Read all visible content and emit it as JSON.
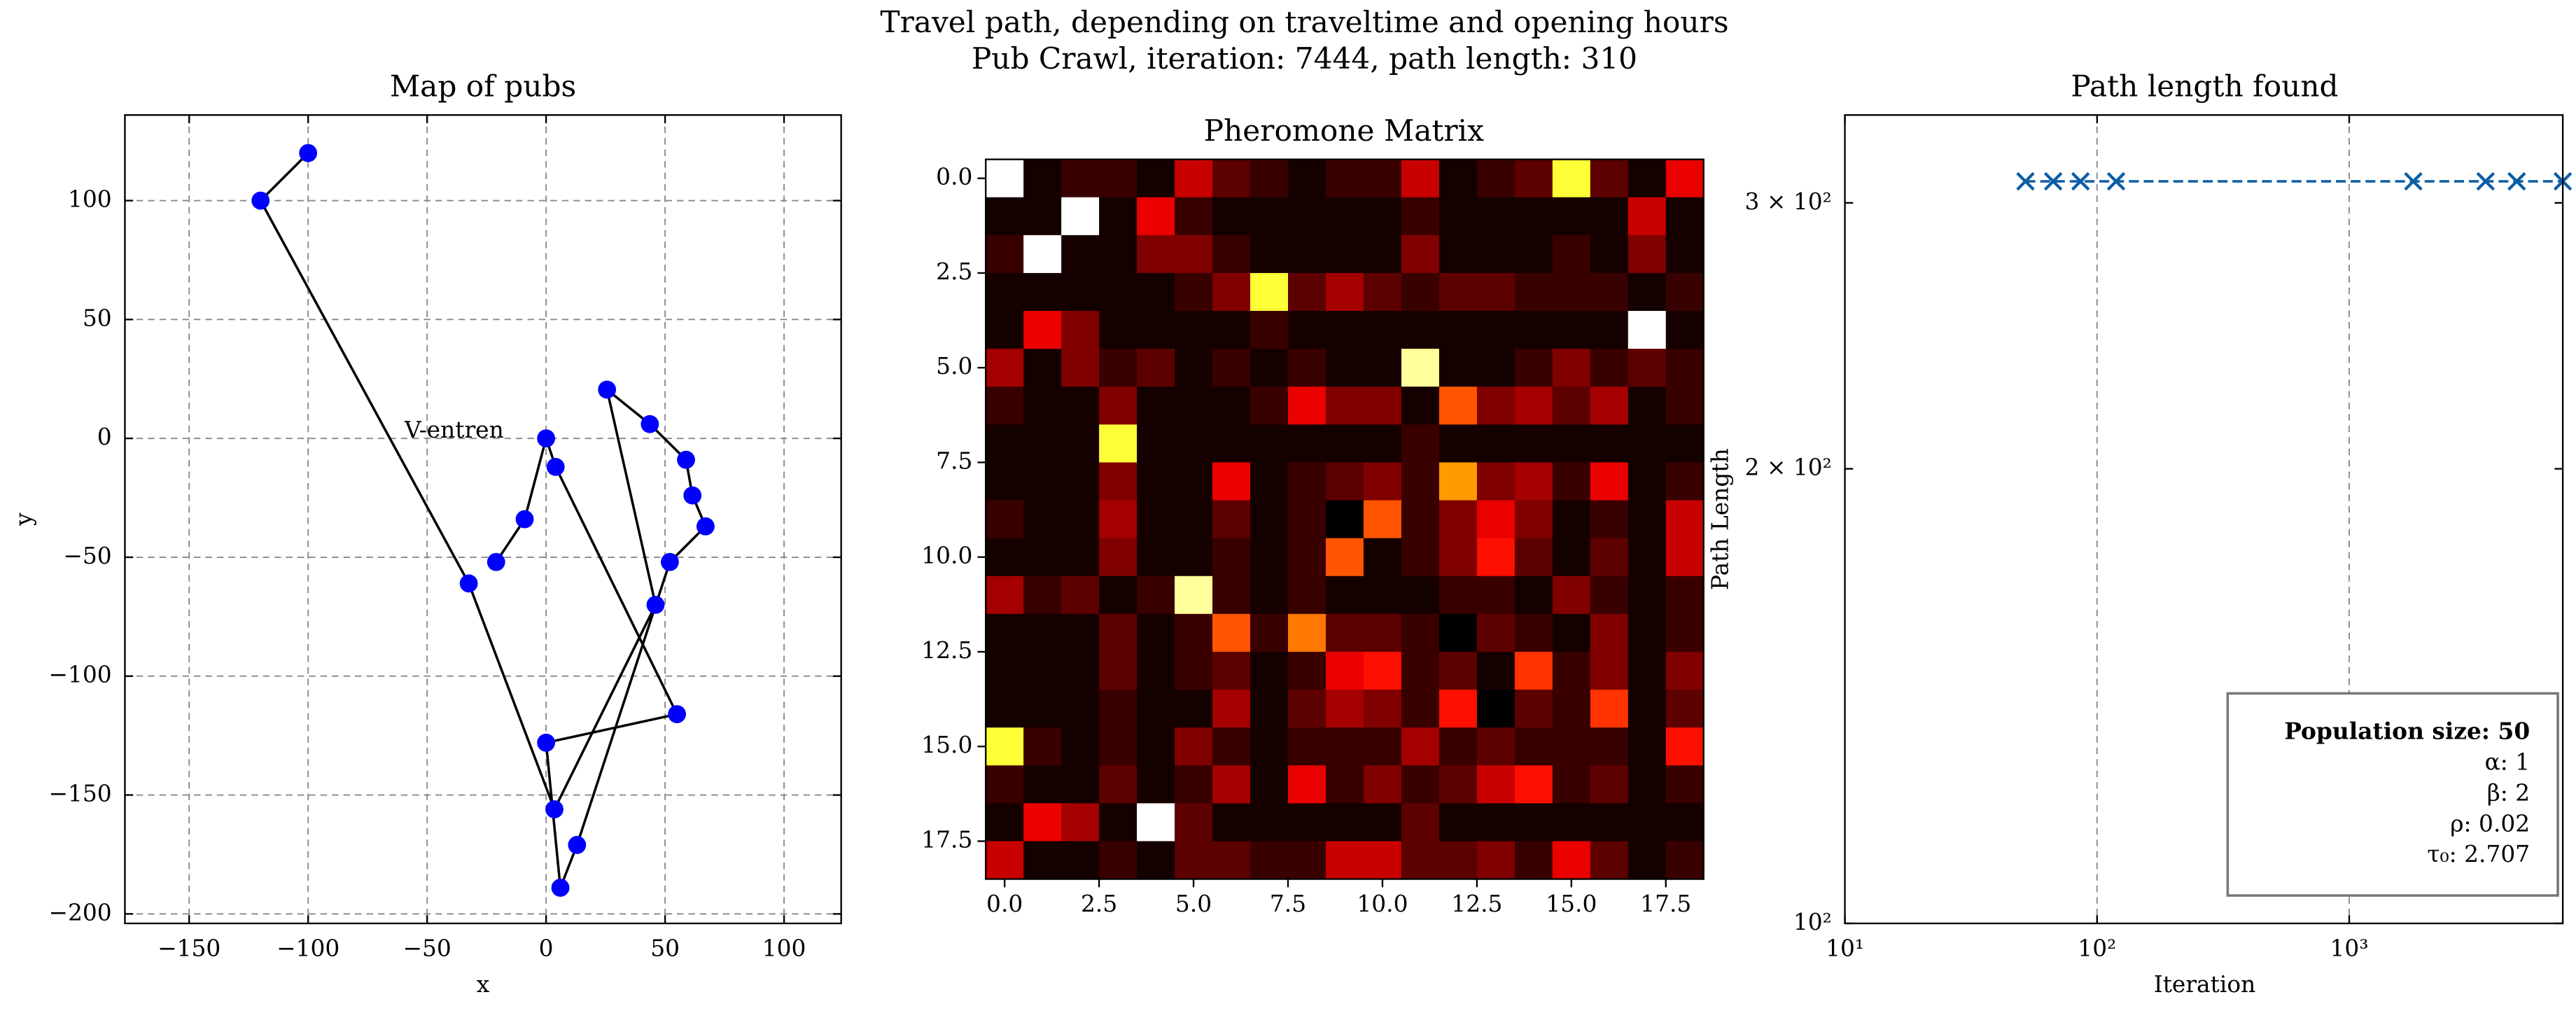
{
  "figure": {
    "title": "Travel path, depending on traveltime and opening hours",
    "subtitle": "Pub Crawl, iteration: 7444, path length: 310"
  },
  "chart_data": [
    {
      "type": "route",
      "title": "Map of pubs",
      "x_label": "x",
      "y_label": "y",
      "x": [
        -100,
        -120,
        -32.5,
        3.5,
        46,
        25.6,
        43.6,
        58.8,
        61.5,
        67,
        52,
        13,
        6,
        0,
        55,
        4,
        0,
        -9,
        -21
      ],
      "values": [
        120,
        100,
        -61,
        -156,
        -70,
        20.5,
        6,
        -9,
        -24,
        -37,
        -52,
        -171,
        -189,
        -128,
        -116,
        -12,
        0,
        -34,
        -52
      ],
      "color": "#0000ff",
      "line_color": "#000000",
      "annotations": [
        {
          "text": "V-entren",
          "x": -59.5,
          "y": 3
        }
      ],
      "xlim": [
        -177,
        124
      ],
      "ylim": [
        -204,
        136
      ],
      "xticks": [
        {
          "value": -150,
          "label": "−150"
        },
        {
          "value": -100,
          "label": "−100"
        },
        {
          "value": -50,
          "label": "−50"
        },
        0,
        50,
        100
      ],
      "yticks": [
        {
          "value": -200,
          "label": "−200"
        },
        {
          "value": -150,
          "label": "−150"
        },
        {
          "value": -100,
          "label": "−100"
        },
        {
          "value": -50,
          "label": "−50"
        },
        0,
        50,
        100
      ],
      "grid": "both"
    },
    {
      "type": "heatmap",
      "title": "Pheromone Matrix",
      "colormap": "hot",
      "z": [
        [
          1.0,
          0.05,
          0.1,
          0.1,
          0.05,
          0.3,
          0.15,
          0.1,
          0.05,
          0.1,
          0.1,
          0.3,
          0.05,
          0.1,
          0.15,
          0.8,
          0.15,
          0.05,
          0.35
        ],
        [
          0.05,
          0.05,
          1.0,
          0.05,
          0.35,
          0.1,
          0.05,
          0.05,
          0.05,
          0.05,
          0.05,
          0.1,
          0.05,
          0.05,
          0.05,
          0.05,
          0.05,
          0.3,
          0.05
        ],
        [
          0.1,
          1.0,
          0.05,
          0.05,
          0.2,
          0.2,
          0.1,
          0.05,
          0.05,
          0.05,
          0.05,
          0.2,
          0.05,
          0.05,
          0.05,
          0.1,
          0.05,
          0.2,
          0.05
        ],
        [
          0.05,
          0.05,
          0.05,
          0.05,
          0.05,
          0.1,
          0.2,
          0.8,
          0.15,
          0.25,
          0.15,
          0.1,
          0.15,
          0.15,
          0.1,
          0.1,
          0.1,
          0.05,
          0.1
        ],
        [
          0.05,
          0.35,
          0.2,
          0.05,
          0.05,
          0.05,
          0.05,
          0.1,
          0.05,
          0.05,
          0.05,
          0.05,
          0.05,
          0.05,
          0.05,
          0.05,
          0.05,
          1.0,
          0.05
        ],
        [
          0.25,
          0.05,
          0.2,
          0.1,
          0.15,
          0.05,
          0.1,
          0.05,
          0.1,
          0.05,
          0.05,
          0.9,
          0.05,
          0.05,
          0.1,
          0.2,
          0.1,
          0.15,
          0.1
        ],
        [
          0.1,
          0.05,
          0.05,
          0.2,
          0.05,
          0.05,
          0.05,
          0.1,
          0.35,
          0.2,
          0.2,
          0.05,
          0.5,
          0.2,
          0.25,
          0.15,
          0.25,
          0.05,
          0.1
        ],
        [
          0.05,
          0.05,
          0.05,
          0.8,
          0.05,
          0.05,
          0.05,
          0.05,
          0.05,
          0.05,
          0.05,
          0.1,
          0.05,
          0.05,
          0.05,
          0.05,
          0.05,
          0.05,
          0.05
        ],
        [
          0.05,
          0.05,
          0.05,
          0.2,
          0.05,
          0.05,
          0.35,
          0.05,
          0.1,
          0.15,
          0.2,
          0.1,
          0.6,
          0.2,
          0.25,
          0.1,
          0.35,
          0.05,
          0.1
        ],
        [
          0.1,
          0.05,
          0.05,
          0.25,
          0.05,
          0.05,
          0.15,
          0.05,
          0.1,
          0.02,
          0.5,
          0.1,
          0.2,
          0.35,
          0.2,
          0.05,
          0.1,
          0.05,
          0.3
        ],
        [
          0.05,
          0.05,
          0.05,
          0.2,
          0.05,
          0.05,
          0.1,
          0.05,
          0.1,
          0.5,
          0.05,
          0.1,
          0.2,
          0.4,
          0.15,
          0.05,
          0.15,
          0.05,
          0.3
        ],
        [
          0.25,
          0.1,
          0.15,
          0.05,
          0.1,
          0.9,
          0.1,
          0.05,
          0.1,
          0.05,
          0.05,
          0.05,
          0.1,
          0.1,
          0.05,
          0.2,
          0.1,
          0.05,
          0.1
        ],
        [
          0.05,
          0.05,
          0.05,
          0.15,
          0.05,
          0.1,
          0.5,
          0.1,
          0.55,
          0.15,
          0.15,
          0.1,
          0.02,
          0.15,
          0.1,
          0.05,
          0.2,
          0.05,
          0.1
        ],
        [
          0.05,
          0.05,
          0.05,
          0.15,
          0.05,
          0.1,
          0.15,
          0.05,
          0.1,
          0.35,
          0.4,
          0.1,
          0.15,
          0.05,
          0.45,
          0.1,
          0.2,
          0.05,
          0.2
        ],
        [
          0.05,
          0.05,
          0.05,
          0.1,
          0.05,
          0.05,
          0.25,
          0.05,
          0.15,
          0.25,
          0.2,
          0.1,
          0.4,
          0.02,
          0.15,
          0.1,
          0.45,
          0.05,
          0.15
        ],
        [
          0.8,
          0.1,
          0.05,
          0.1,
          0.05,
          0.2,
          0.1,
          0.05,
          0.1,
          0.1,
          0.1,
          0.25,
          0.1,
          0.15,
          0.1,
          0.1,
          0.1,
          0.05,
          0.4
        ],
        [
          0.1,
          0.05,
          0.05,
          0.15,
          0.05,
          0.1,
          0.25,
          0.05,
          0.35,
          0.1,
          0.2,
          0.1,
          0.15,
          0.3,
          0.4,
          0.1,
          0.15,
          0.05,
          0.1
        ],
        [
          0.05,
          0.35,
          0.25,
          0.05,
          1.0,
          0.15,
          0.05,
          0.05,
          0.05,
          0.05,
          0.05,
          0.15,
          0.05,
          0.05,
          0.05,
          0.05,
          0.05,
          0.05,
          0.05
        ],
        [
          0.3,
          0.05,
          0.05,
          0.1,
          0.05,
          0.15,
          0.15,
          0.1,
          0.1,
          0.3,
          0.3,
          0.15,
          0.15,
          0.2,
          0.1,
          0.35,
          0.15,
          0.05,
          0.1
        ]
      ],
      "xlim": [
        -0.5,
        18.5
      ],
      "ylim": [
        18.5,
        -0.5
      ],
      "xticks": [
        {
          "value": 0,
          "label": "0.0"
        },
        2.5,
        {
          "value": 5,
          "label": "5.0"
        },
        7.5,
        {
          "value": 10,
          "label": "10.0"
        },
        12.5,
        {
          "value": 15,
          "label": "15.0"
        },
        17.5
      ],
      "yticks": [
        {
          "value": 0,
          "label": "0.0"
        },
        2.5,
        {
          "value": 5,
          "label": "5.0"
        },
        7.5,
        {
          "value": 10,
          "label": "10.0"
        },
        12.5,
        {
          "value": 15,
          "label": "15.0"
        },
        17.5
      ]
    },
    {
      "type": "line",
      "title": "Path length found",
      "x_label": "Iteration",
      "y_label": "Path Length",
      "x": [
        52,
        67,
        86,
        119,
        1795,
        3474,
        4617,
        7030
      ],
      "values": [
        310,
        310,
        310,
        310,
        310,
        310,
        310,
        310
      ],
      "color": "#0c5da5",
      "marker": "x",
      "linestyle": "dashed",
      "xscale": "log",
      "yscale": "log",
      "xlim": [
        10,
        7030
      ],
      "ylim": [
        100,
        343
      ],
      "xticks": [
        {
          "value": 10,
          "label": "10¹"
        },
        {
          "value": 100,
          "label": "10²"
        },
        {
          "value": 1000,
          "label": "10³"
        }
      ],
      "yticks": [
        {
          "value": 100,
          "label": "10²"
        },
        {
          "value": 200,
          "label": "2 × 10²"
        },
        {
          "value": 300,
          "label": "3 × 10²"
        }
      ],
      "grid": "x",
      "info_lines": [
        "Population size: 50",
        "α: 1",
        "β: 2",
        "ρ: 0.02",
        "τ₀: 2.707"
      ]
    }
  ]
}
